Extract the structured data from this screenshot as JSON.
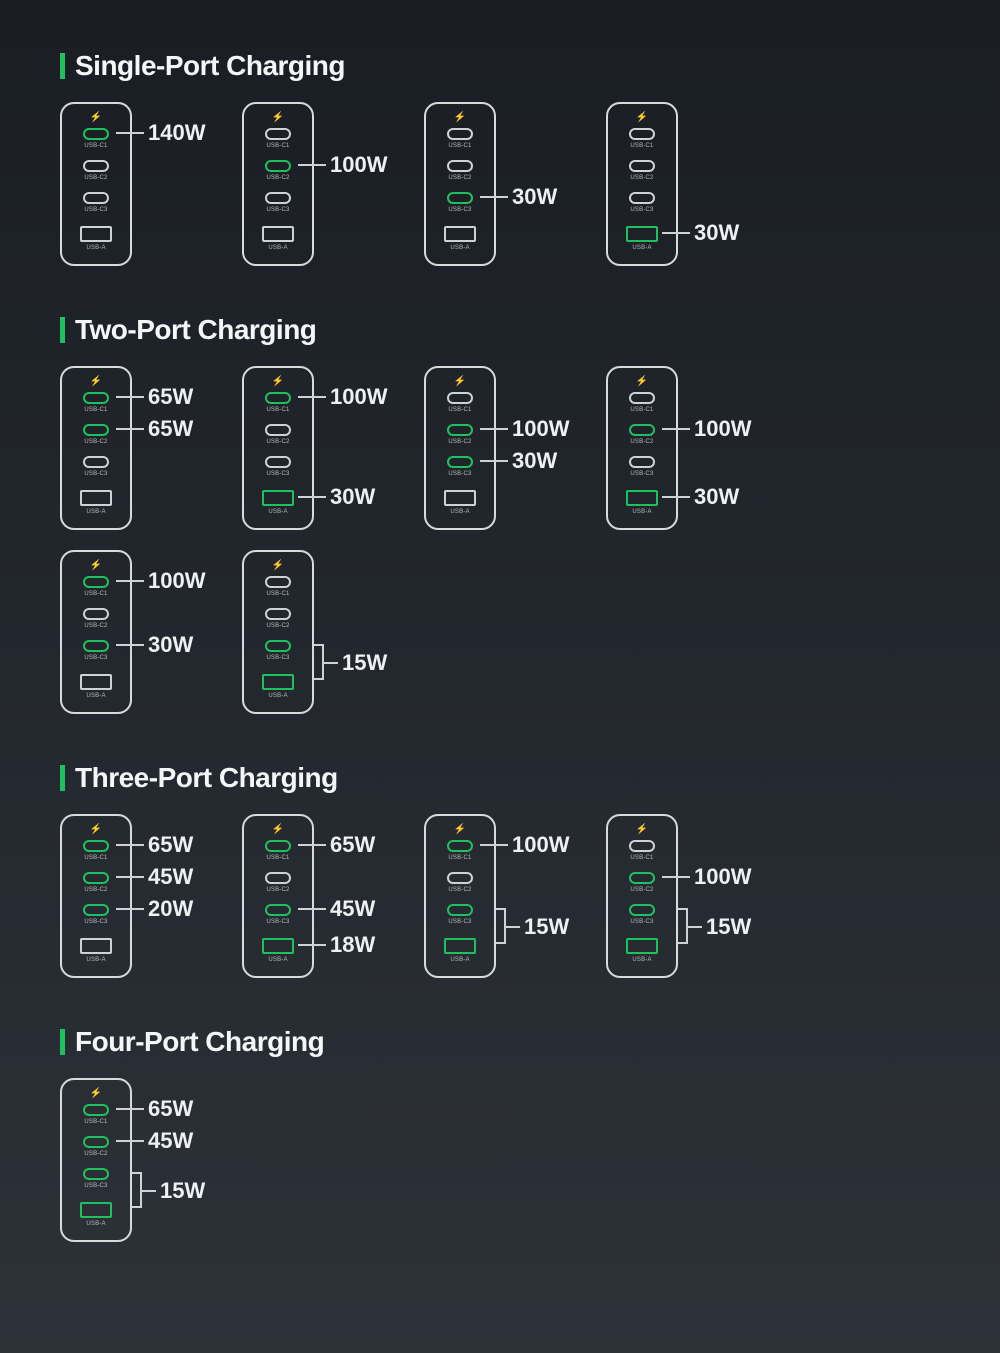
{
  "colors": {
    "background_top": "#1a1e24",
    "background_bottom": "#2d3138",
    "outline": "#d8dadc",
    "active": "#1fc15e",
    "text": "#f5f6f7",
    "port_label": "#b8bbbe"
  },
  "typography": {
    "title_fontsize": 28,
    "title_weight": 600,
    "callout_fontsize": 22,
    "callout_weight": 700,
    "port_label_fontsize": 6
  },
  "port_definitions": [
    {
      "type": "c",
      "label": "USB-C1"
    },
    {
      "type": "c",
      "label": "USB-C2"
    },
    {
      "type": "c",
      "label": "USB-C3"
    },
    {
      "type": "a",
      "label": "USB-A"
    }
  ],
  "sections": [
    {
      "title": "Single-Port Charging",
      "rows": [
        [
          {
            "active": [
              0
            ],
            "callouts": [
              {
                "port": 0,
                "watt": "140W"
              }
            ]
          },
          {
            "active": [
              1
            ],
            "callouts": [
              {
                "port": 1,
                "watt": "100W"
              }
            ]
          },
          {
            "active": [
              2
            ],
            "callouts": [
              {
                "port": 2,
                "watt": "30W"
              }
            ]
          },
          {
            "active": [
              3
            ],
            "callouts": [
              {
                "port": 3,
                "watt": "30W"
              }
            ]
          }
        ]
      ]
    },
    {
      "title": "Two-Port Charging",
      "rows": [
        [
          {
            "active": [
              0,
              1
            ],
            "callouts": [
              {
                "port": 0,
                "watt": "65W"
              },
              {
                "port": 1,
                "watt": "65W"
              }
            ]
          },
          {
            "active": [
              0,
              3
            ],
            "callouts": [
              {
                "port": 0,
                "watt": "100W"
              },
              {
                "port": 3,
                "watt": "30W"
              }
            ]
          },
          {
            "active": [
              1,
              2
            ],
            "callouts": [
              {
                "port": 1,
                "watt": "100W"
              },
              {
                "port": 2,
                "watt": "30W"
              }
            ]
          },
          {
            "active": [
              1,
              3
            ],
            "callouts": [
              {
                "port": 1,
                "watt": "100W"
              },
              {
                "port": 3,
                "watt": "30W"
              }
            ]
          }
        ],
        [
          {
            "active": [
              0,
              2
            ],
            "callouts": [
              {
                "port": 0,
                "watt": "100W"
              },
              {
                "port": 2,
                "watt": "30W"
              }
            ]
          },
          {
            "active": [
              2,
              3
            ],
            "callouts": [
              {
                "ports": [
                  2,
                  3
                ],
                "watt": "15W"
              }
            ]
          }
        ]
      ]
    },
    {
      "title": "Three-Port Charging",
      "rows": [
        [
          {
            "active": [
              0,
              1,
              2
            ],
            "callouts": [
              {
                "port": 0,
                "watt": "65W"
              },
              {
                "port": 1,
                "watt": "45W"
              },
              {
                "port": 2,
                "watt": "20W"
              }
            ]
          },
          {
            "active": [
              0,
              2,
              3
            ],
            "callouts": [
              {
                "port": 0,
                "watt": "65W"
              },
              {
                "port": 2,
                "watt": "45W"
              },
              {
                "port": 3,
                "watt": "18W"
              }
            ]
          },
          {
            "active": [
              0,
              2,
              3
            ],
            "callouts": [
              {
                "port": 0,
                "watt": "100W"
              },
              {
                "ports": [
                  2,
                  3
                ],
                "watt": "15W"
              }
            ]
          },
          {
            "active": [
              1,
              2,
              3
            ],
            "callouts": [
              {
                "port": 1,
                "watt": "100W"
              },
              {
                "ports": [
                  2,
                  3
                ],
                "watt": "15W"
              }
            ]
          }
        ]
      ]
    },
    {
      "title": "Four-Port Charging",
      "rows": [
        [
          {
            "active": [
              0,
              1,
              2,
              3
            ],
            "callouts": [
              {
                "port": 0,
                "watt": "65W"
              },
              {
                "port": 1,
                "watt": "45W"
              },
              {
                "ports": [
                  2,
                  3
                ],
                "watt": "15W"
              }
            ]
          }
        ]
      ]
    }
  ]
}
